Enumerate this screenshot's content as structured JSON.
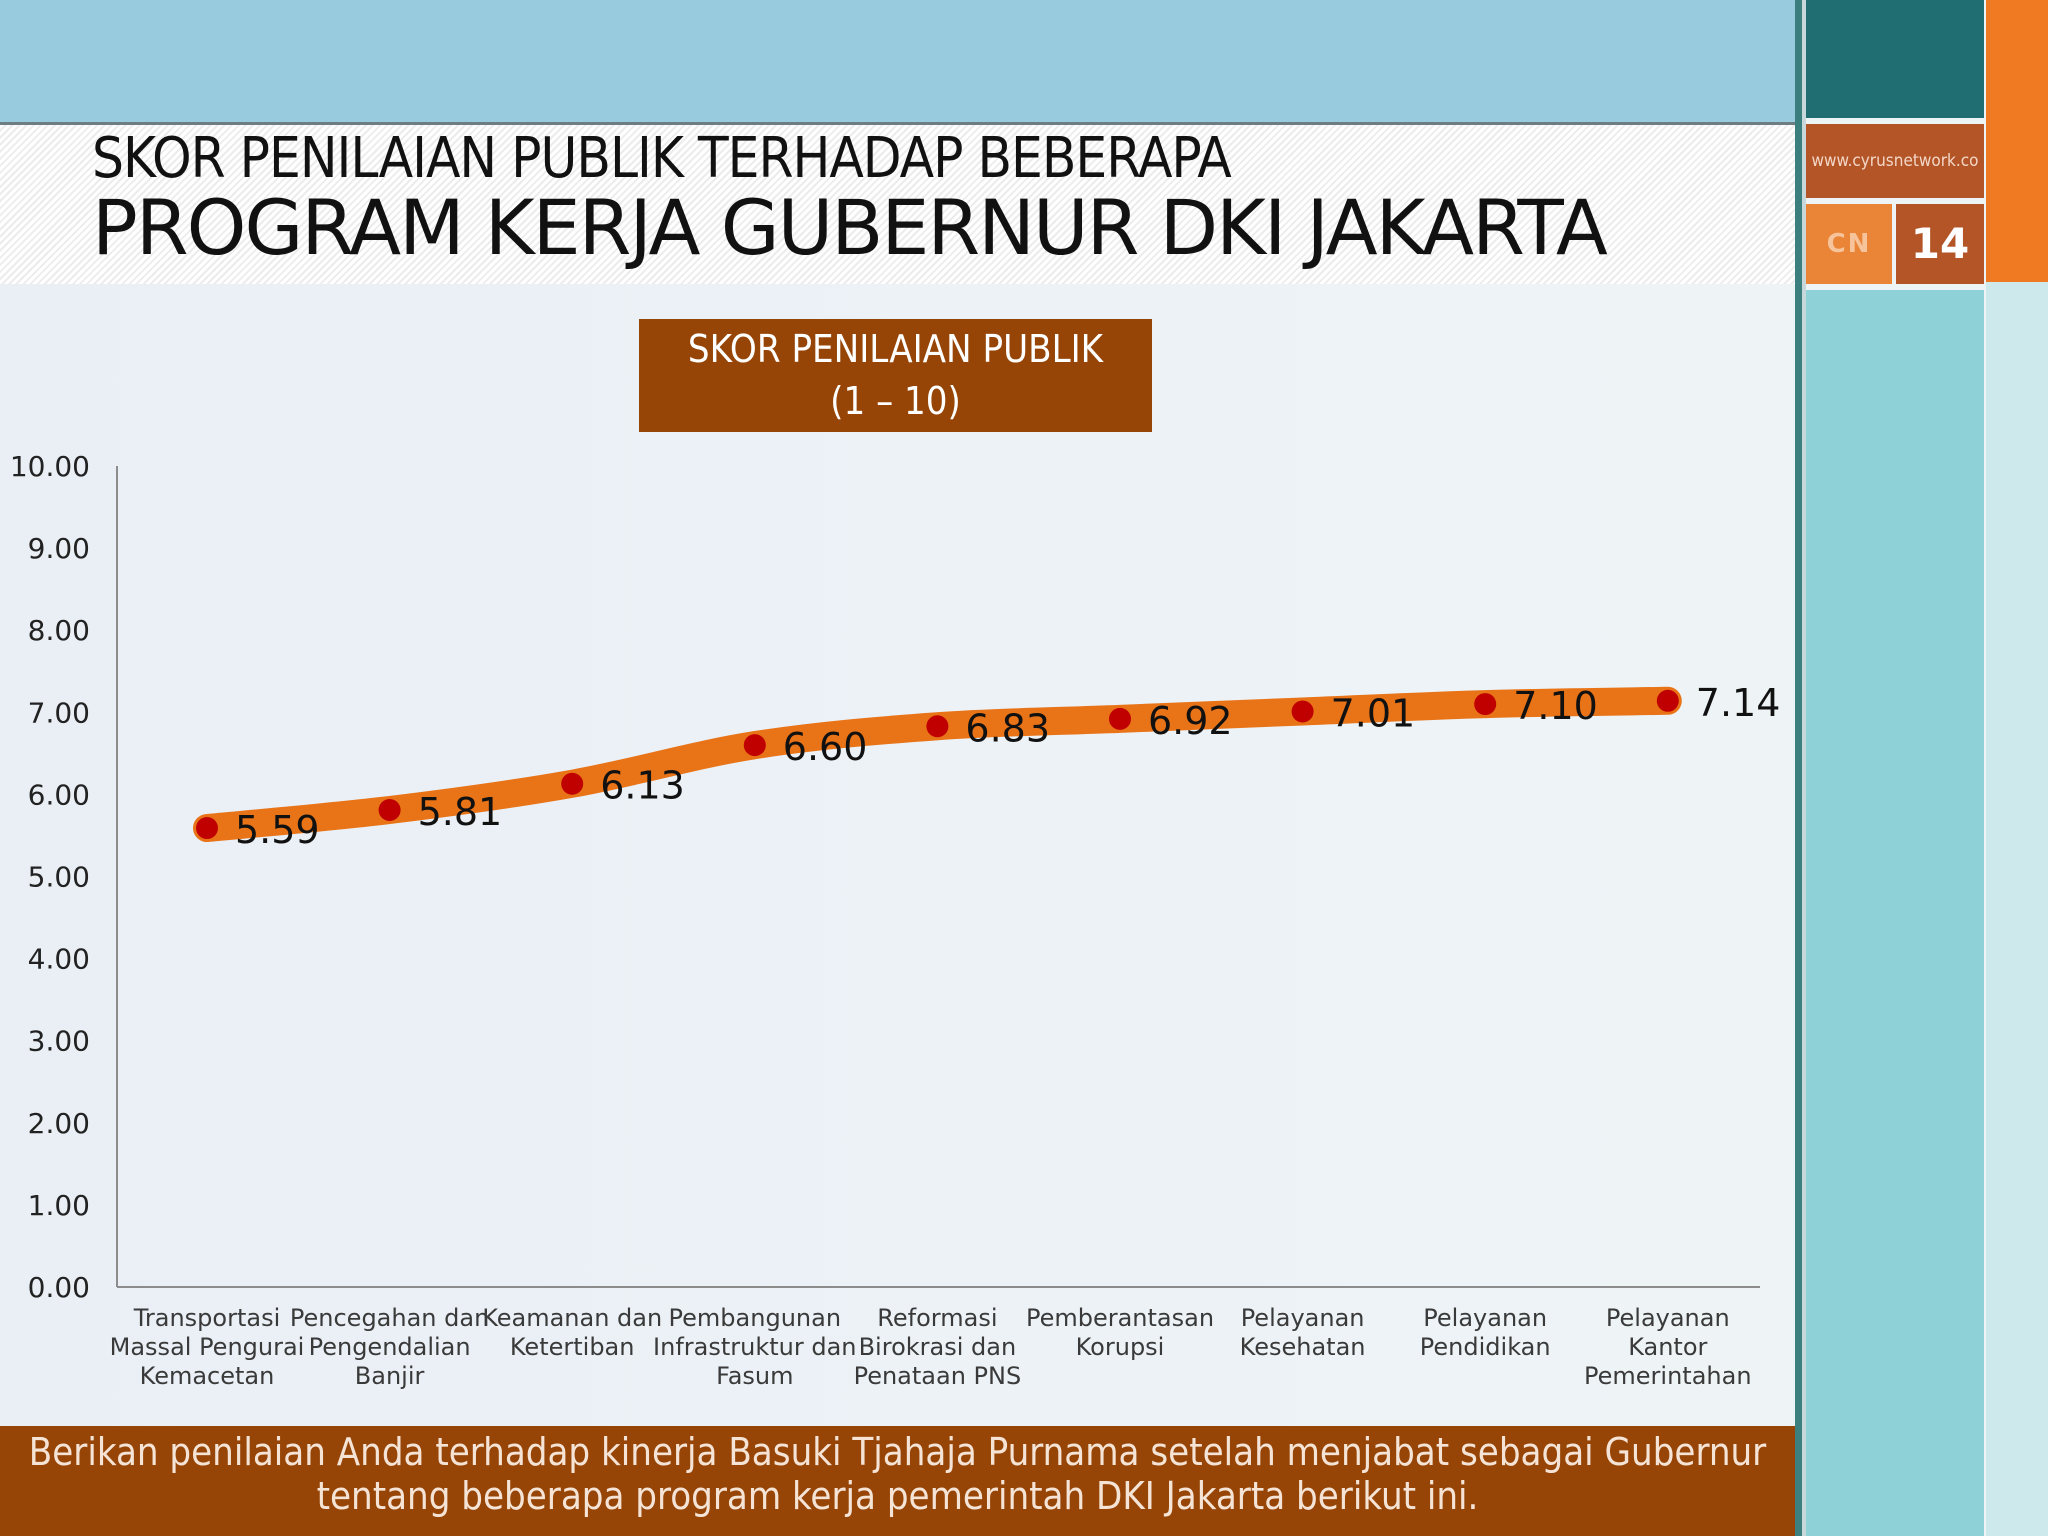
{
  "slide": {
    "title_line1": "SKOR PENILAIAN PUBLIK TERHADAP BEBERAPA",
    "title_line2": "PROGRAM KERJA GUBERNUR DKI JAKARTA",
    "url": "www.cyrusnetwork.co",
    "logo_text": "CN",
    "page_number": "14",
    "footer_line1": "Berikan penilaian Anda terhadap kinerja Basuki Tjahaja Purnama setelah menjabat sebagai Gubernur",
    "footer_line2": "tentang beberapa program kerja pemerintah DKI Jakarta berikut ini."
  },
  "colors": {
    "line": "#e97317",
    "marker": "#c00000",
    "brown": "#964507",
    "axis": "#8c8c8c"
  },
  "chart_data": {
    "type": "line",
    "legend_line1": "SKOR PENILAIAN PUBLIK",
    "legend_line2": "(1 – 10)",
    "legend_placement": "top",
    "grid": false,
    "ylim": [
      0,
      10
    ],
    "yticks": [
      "0.00",
      "1.00",
      "2.00",
      "3.00",
      "4.00",
      "5.00",
      "6.00",
      "7.00",
      "8.00",
      "9.00",
      "10.00"
    ],
    "categories": [
      [
        "Transportasi",
        "Massal Pengurai",
        "Kemacetan"
      ],
      [
        "Pencegahan dan",
        "Pengendalian",
        "Banjir"
      ],
      [
        "Keamanan dan",
        "Ketertiban"
      ],
      [
        "Pembangunan",
        "Infrastruktur dan",
        "Fasum"
      ],
      [
        "Reformasi",
        "Birokrasi dan",
        "Penataan PNS"
      ],
      [
        "Pemberantasan",
        "Korupsi"
      ],
      [
        "Pelayanan",
        "Kesehatan"
      ],
      [
        "Pelayanan",
        "Pendidikan"
      ],
      [
        "Pelayanan",
        "Kantor",
        "Pemerintahan"
      ]
    ],
    "values": [
      5.59,
      5.81,
      6.13,
      6.6,
      6.83,
      6.92,
      7.01,
      7.1,
      7.14
    ],
    "data_labels": [
      "5.59",
      "5.81",
      "6.13",
      "6.60",
      "6.83",
      "6.92",
      "7.01",
      "7.10",
      "7.14"
    ]
  }
}
